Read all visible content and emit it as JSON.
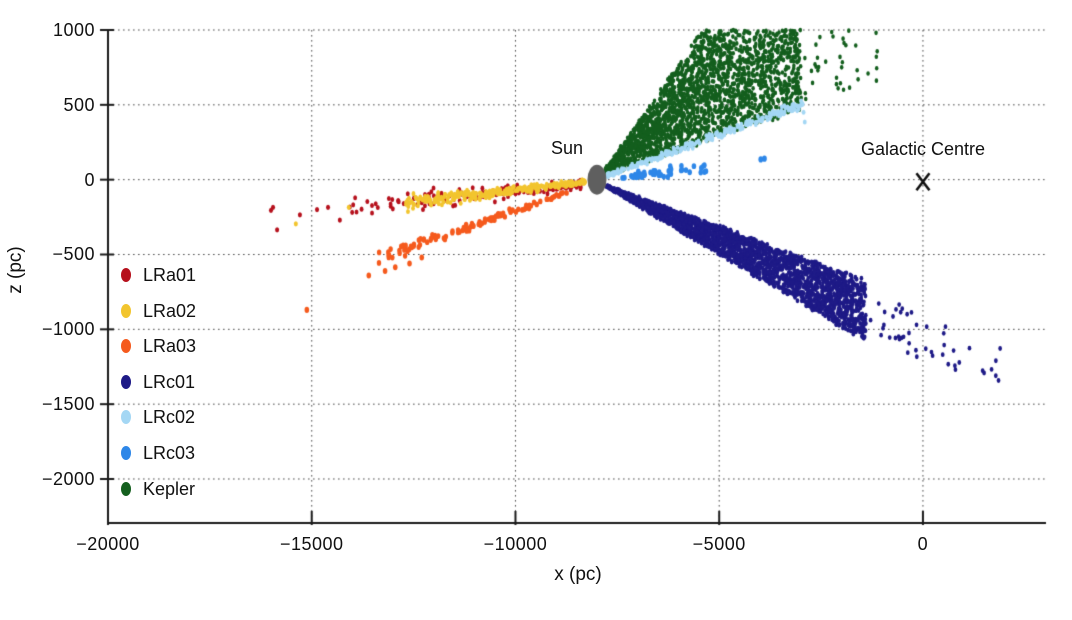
{
  "figure": {
    "background": "#ffffff",
    "axis_color": "#1a1a1a"
  },
  "chart_data": {
    "type": "scatter",
    "title": "",
    "xlabel": "x (pc)",
    "ylabel": "z (pc)",
    "xlim": [
      -20000,
      3020
    ],
    "ylim": [
      -2294,
      1000
    ],
    "grid": {
      "style": "dotted",
      "color": "#4a4a4a"
    },
    "legend_position": "lower-left-inside",
    "xticks": [
      {
        "value": -20000,
        "label": "−20000"
      },
      {
        "value": -15000,
        "label": "−15000"
      },
      {
        "value": -10000,
        "label": "−10000"
      },
      {
        "value": -5000,
        "label": "−5000"
      },
      {
        "value": 0,
        "label": "0"
      }
    ],
    "yticks": [
      {
        "value": 1000,
        "label": "1000"
      },
      {
        "value": 500,
        "label": "500"
      },
      {
        "value": 0,
        "label": "0"
      },
      {
        "value": -500,
        "label": "−500"
      },
      {
        "value": -1000,
        "label": "−1000"
      },
      {
        "value": -1500,
        "label": "−1500"
      },
      {
        "value": -2000,
        "label": "−2000"
      }
    ],
    "annotations": {
      "sun": {
        "label": "Sun",
        "x": -8000,
        "z": 0,
        "marker": "filled-ellipse",
        "color": "#5f5f5f"
      },
      "galactic_centre": {
        "label": "Galactic Centre",
        "x": 0,
        "z": 0,
        "marker": "x",
        "color": "#111111"
      }
    },
    "series": [
      {
        "name": "LRa01",
        "color": "#b6101c",
        "size": 4.6,
        "distributions": [
          {
            "kind": "band",
            "from": [
              -8400,
              -30
            ],
            "to": [
              -14200,
              -185
            ],
            "n": 170,
            "spread": 55,
            "bias": 1.35,
            "seed": 11
          }
        ],
        "outliers": [
          [
            -16000,
            -205
          ],
          [
            -15950,
            -185
          ],
          [
            -15850,
            -335
          ],
          [
            -15290,
            -235
          ],
          [
            -14870,
            -200
          ],
          [
            -14600,
            -185
          ],
          [
            -14310,
            -270
          ]
        ]
      },
      {
        "name": "LRa02",
        "color": "#f2c52e",
        "size": 4.6,
        "distributions": [
          {
            "kind": "band",
            "from": [
              -8300,
              -15
            ],
            "to": [
              -12700,
              -155
            ],
            "n": 300,
            "spread": 33,
            "bias": 1.25,
            "seed": 22
          }
        ],
        "outliers": [
          [
            -14090,
            -185
          ],
          [
            -15390,
            -295
          ]
        ]
      },
      {
        "name": "LRa03",
        "color": "#f55a1d",
        "size": 5.2,
        "distributions": [
          {
            "kind": "band",
            "from": [
              -8700,
              -85
            ],
            "to": [
              -13350,
              -525
            ],
            "n": 115,
            "spread": 26,
            "bias": 1.15,
            "seed": 33
          }
        ],
        "outliers": [
          [
            -15120,
            -870
          ],
          [
            -13600,
            -640
          ],
          [
            -13200,
            -610
          ],
          [
            -12950,
            -585
          ],
          [
            -12600,
            -560
          ],
          [
            -12300,
            -520
          ]
        ]
      },
      {
        "name": "LRc01",
        "color": "#1e1a87",
        "size": 4.4,
        "distributions": [
          {
            "kind": "fan",
            "apex": [
              -7900,
              -25
            ],
            "dx": [
              120,
              6500
            ],
            "slope": [
              -0.163,
              -0.1
            ],
            "n": 2300,
            "bias": 0.85,
            "jitter": 14,
            "seed": 44
          },
          {
            "kind": "fan",
            "apex": [
              -7900,
              -25
            ],
            "dx": [
              5800,
              9800
            ],
            "slope": [
              -0.15,
              -0.112
            ],
            "n": 60,
            "bias": 1.0,
            "jitter": 60,
            "seed": 45
          }
        ],
        "outliers": []
      },
      {
        "name": "LRc02",
        "color": "#a4d7f4",
        "size": 4.4,
        "distributions": [
          {
            "kind": "band",
            "from": [
              -7780,
              25
            ],
            "to": [
              -2950,
              505
            ],
            "n": 250,
            "spread": 25,
            "bias": 1.1,
            "seed": 55
          }
        ],
        "outliers": [
          [
            -2990,
            525
          ],
          [
            -2930,
            450
          ],
          [
            -2900,
            385
          ],
          [
            -3050,
            470
          ]
        ]
      },
      {
        "name": "LRc03",
        "color": "#2e87e8",
        "size": 5.4,
        "distributions": [
          {
            "kind": "band",
            "from": [
              -7420,
              20
            ],
            "to": [
              -5320,
              80
            ],
            "n": 48,
            "spread": 30,
            "bias": 1.0,
            "seed": 66
          }
        ],
        "outliers": [
          [
            -3980,
            135
          ],
          [
            -3890,
            140
          ]
        ]
      },
      {
        "name": "Kepler",
        "color": "#145f1e",
        "size": 4.2,
        "distributions": [
          {
            "kind": "fan",
            "apex": [
              -7950,
              15
            ],
            "dx": [
              130,
              4950
            ],
            "slope": [
              0.092,
              0.385
            ],
            "n": 2900,
            "bias": 0.8,
            "jitter": 16,
            "clip_z_max": 1000,
            "seed": 77
          },
          {
            "kind": "fan",
            "apex": [
              -7950,
              15
            ],
            "dx": [
              4300,
              7000
            ],
            "slope": [
              0.1,
              0.4
            ],
            "n": 170,
            "bias": 1.0,
            "jitter": 45,
            "clip_z_max": 1000,
            "seed": 78
          }
        ],
        "outliers": []
      }
    ],
    "draw_order": [
      "Kepler",
      "LRc01",
      "LRa01",
      "LRa02",
      "LRa03",
      "LRc02",
      "LRc03"
    ]
  }
}
